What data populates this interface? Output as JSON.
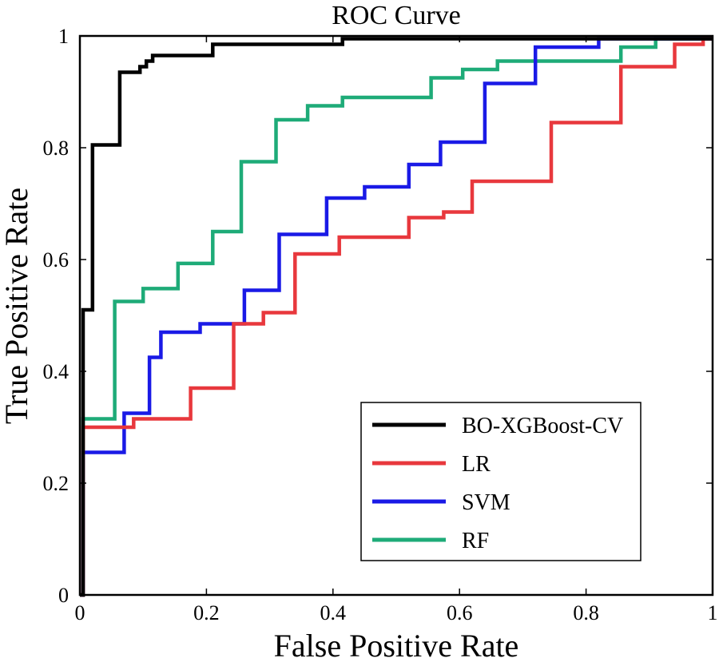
{
  "chart_data": {
    "type": "line",
    "title": "ROC Curve",
    "xlabel": "False Positive Rate",
    "ylabel": "True Positive Rate",
    "xlim": [
      0,
      1
    ],
    "ylim": [
      0,
      1
    ],
    "xticks": [
      0,
      0.2,
      0.4,
      0.6,
      0.8,
      1
    ],
    "xtick_labels": [
      "0",
      "0.2",
      "0.4",
      "0.6",
      "0.8",
      "1"
    ],
    "yticks": [
      0,
      0.2,
      0.4,
      0.6,
      0.8,
      1
    ],
    "ytick_labels": [
      "0",
      "0.2",
      "0.4",
      "0.6",
      "0.8",
      "1"
    ],
    "grid": false,
    "legend_position": "bottom-right",
    "series": [
      {
        "name": "BO-XGBoost-CV",
        "color": "#000000",
        "points": [
          [
            0,
            0
          ],
          [
            0.005,
            0
          ],
          [
            0.005,
            0.51
          ],
          [
            0.02,
            0.51
          ],
          [
            0.02,
            0.805
          ],
          [
            0.063,
            0.805
          ],
          [
            0.063,
            0.935
          ],
          [
            0.095,
            0.935
          ],
          [
            0.095,
            0.945
          ],
          [
            0.105,
            0.945
          ],
          [
            0.105,
            0.955
          ],
          [
            0.115,
            0.955
          ],
          [
            0.115,
            0.965
          ],
          [
            0.21,
            0.965
          ],
          [
            0.21,
            0.985
          ],
          [
            0.415,
            0.985
          ],
          [
            0.415,
            0.995
          ],
          [
            1,
            0.995
          ]
        ]
      },
      {
        "name": "LR",
        "color": "#e8383d",
        "points": [
          [
            0,
            0
          ],
          [
            0.005,
            0
          ],
          [
            0.005,
            0.3
          ],
          [
            0.085,
            0.3
          ],
          [
            0.085,
            0.315
          ],
          [
            0.175,
            0.315
          ],
          [
            0.175,
            0.37
          ],
          [
            0.243,
            0.37
          ],
          [
            0.243,
            0.485
          ],
          [
            0.29,
            0.485
          ],
          [
            0.29,
            0.505
          ],
          [
            0.34,
            0.505
          ],
          [
            0.34,
            0.61
          ],
          [
            0.41,
            0.61
          ],
          [
            0.41,
            0.64
          ],
          [
            0.52,
            0.64
          ],
          [
            0.52,
            0.675
          ],
          [
            0.575,
            0.675
          ],
          [
            0.575,
            0.685
          ],
          [
            0.62,
            0.685
          ],
          [
            0.62,
            0.74
          ],
          [
            0.745,
            0.74
          ],
          [
            0.745,
            0.845
          ],
          [
            0.855,
            0.845
          ],
          [
            0.855,
            0.945
          ],
          [
            0.94,
            0.945
          ],
          [
            0.94,
            0.985
          ],
          [
            0.985,
            0.985
          ],
          [
            0.985,
            0.995
          ],
          [
            1,
            0.995
          ]
        ]
      },
      {
        "name": "SVM",
        "color": "#1a1ae6",
        "points": [
          [
            0,
            0
          ],
          [
            0.005,
            0
          ],
          [
            0.005,
            0.255
          ],
          [
            0.07,
            0.255
          ],
          [
            0.07,
            0.325
          ],
          [
            0.11,
            0.325
          ],
          [
            0.11,
            0.425
          ],
          [
            0.128,
            0.425
          ],
          [
            0.128,
            0.47
          ],
          [
            0.19,
            0.47
          ],
          [
            0.19,
            0.485
          ],
          [
            0.26,
            0.485
          ],
          [
            0.26,
            0.545
          ],
          [
            0.315,
            0.545
          ],
          [
            0.315,
            0.645
          ],
          [
            0.39,
            0.645
          ],
          [
            0.39,
            0.71
          ],
          [
            0.45,
            0.71
          ],
          [
            0.45,
            0.73
          ],
          [
            0.52,
            0.73
          ],
          [
            0.52,
            0.77
          ],
          [
            0.57,
            0.77
          ],
          [
            0.57,
            0.81
          ],
          [
            0.64,
            0.81
          ],
          [
            0.64,
            0.915
          ],
          [
            0.72,
            0.915
          ],
          [
            0.72,
            0.98
          ],
          [
            0.82,
            0.98
          ],
          [
            0.82,
            0.995
          ],
          [
            1,
            0.995
          ]
        ]
      },
      {
        "name": "RF",
        "color": "#1eab78",
        "points": [
          [
            0,
            0
          ],
          [
            0.005,
            0
          ],
          [
            0.005,
            0.315
          ],
          [
            0.055,
            0.315
          ],
          [
            0.055,
            0.525
          ],
          [
            0.1,
            0.525
          ],
          [
            0.1,
            0.548
          ],
          [
            0.155,
            0.548
          ],
          [
            0.155,
            0.593
          ],
          [
            0.21,
            0.593
          ],
          [
            0.21,
            0.65
          ],
          [
            0.255,
            0.65
          ],
          [
            0.255,
            0.775
          ],
          [
            0.31,
            0.775
          ],
          [
            0.31,
            0.85
          ],
          [
            0.36,
            0.85
          ],
          [
            0.36,
            0.875
          ],
          [
            0.415,
            0.875
          ],
          [
            0.415,
            0.89
          ],
          [
            0.555,
            0.89
          ],
          [
            0.555,
            0.925
          ],
          [
            0.605,
            0.925
          ],
          [
            0.605,
            0.94
          ],
          [
            0.66,
            0.94
          ],
          [
            0.66,
            0.955
          ],
          [
            0.855,
            0.955
          ],
          [
            0.855,
            0.98
          ],
          [
            0.91,
            0.98
          ],
          [
            0.91,
            0.995
          ],
          [
            1,
            0.995
          ]
        ]
      }
    ]
  }
}
